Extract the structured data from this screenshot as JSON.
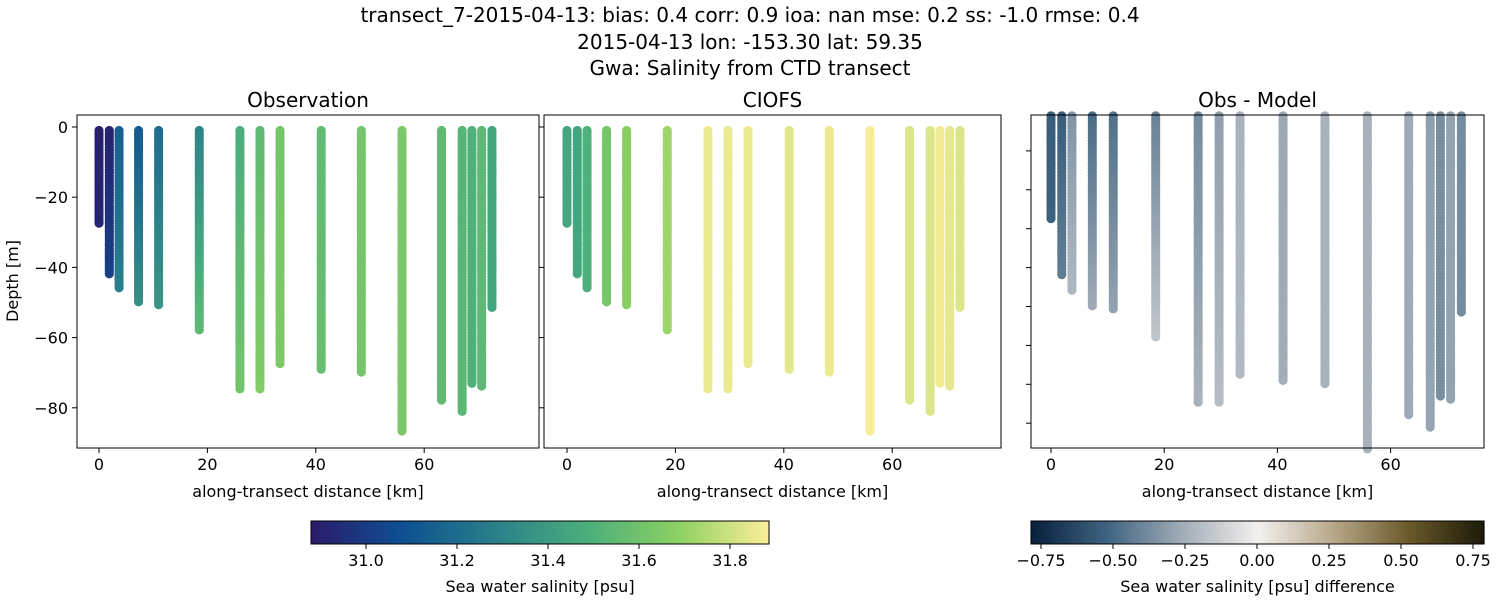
{
  "title": {
    "line1": "transect_7-2015-04-13: bias: 0.4  corr: 0.9  ioa: nan  mse: 0.2  ss: -1.0  rmse: 0.4",
    "line2": "2015-04-13 lon: -153.30 lat: 59.35",
    "line3": "Gwa: Salinity from CTD transect"
  },
  "chart_data": [
    {
      "type": "scatter",
      "title": "Observation",
      "xlabel": "along-transect distance [km]",
      "ylabel": "Depth [m]",
      "xticks": [
        0,
        20,
        40,
        60
      ],
      "yticks": [
        0,
        -20,
        -40,
        -60,
        -80
      ],
      "ylim": [
        -91,
        3.5
      ]
    },
    {
      "type": "scatter",
      "title": "CIOFS",
      "xlabel": "along-transect distance [km]",
      "xticks": [
        0,
        20,
        40,
        60
      ],
      "ylim": [
        -91,
        3.5
      ]
    },
    {
      "type": "scatter",
      "title": "Obs - Model",
      "xlabel": "along-transect distance [km]",
      "xticks": [
        0,
        20,
        40,
        60
      ]
    }
  ],
  "profiles": [
    {
      "x": 0,
      "depth": 28,
      "obs_top": 30.9,
      "obs_bottom": 30.92,
      "model": 31.45
    },
    {
      "x": 1.9,
      "depth": 42,
      "obs_top": 30.9,
      "obs_bottom": 31.02,
      "model": 31.45
    },
    {
      "x": 3.7,
      "depth": 46,
      "obs_top": 31.15,
      "obs_bottom": 31.28,
      "model": 31.5
    },
    {
      "x": 7.3,
      "depth": 50,
      "obs_top": 31.12,
      "obs_bottom": 31.35,
      "model": 31.62
    },
    {
      "x": 11,
      "depth": 51,
      "obs_top": 31.2,
      "obs_bottom": 31.38,
      "model": 31.68
    },
    {
      "x": 18.5,
      "depth": 58,
      "obs_top": 31.3,
      "obs_bottom": 31.55,
      "model": 31.72
    },
    {
      "x": 26,
      "depth": 75,
      "obs_top": 31.48,
      "obs_bottom": 31.62,
      "model": 31.86
    },
    {
      "x": 29.7,
      "depth": 75,
      "obs_top": 31.55,
      "obs_bottom": 31.66,
      "model": 31.86
    },
    {
      "x": 33.4,
      "depth": 68,
      "obs_top": 31.62,
      "obs_bottom": 31.65,
      "model": 31.86
    },
    {
      "x": 41,
      "depth": 69,
      "obs_top": 31.56,
      "obs_bottom": 31.58,
      "model": 31.84
    },
    {
      "x": 48.4,
      "depth": 70,
      "obs_top": 31.62,
      "obs_bottom": 31.62,
      "model": 31.86
    },
    {
      "x": 55.9,
      "depth": 87,
      "obs_top": 31.64,
      "obs_bottom": 31.64,
      "model": 31.88
    },
    {
      "x": 63.2,
      "depth": 78,
      "obs_top": 31.56,
      "obs_bottom": 31.56,
      "model": 31.83
    },
    {
      "x": 67,
      "depth": 81,
      "obs_top": 31.52,
      "obs_bottom": 31.54,
      "model": 31.83
    },
    {
      "x": 68.8,
      "depth": 73,
      "obs_top": 31.5,
      "obs_bottom": 31.5,
      "model": 31.87
    },
    {
      "x": 70.6,
      "depth": 74,
      "obs_top": 31.55,
      "obs_bottom": 31.55,
      "model": 31.85
    },
    {
      "x": 72.5,
      "depth": 52,
      "obs_top": 31.45,
      "obs_bottom": 31.45,
      "model": 31.83
    }
  ],
  "colorbar_salinity": {
    "label": "Sea water salinity [psu]",
    "ticks": [
      "31.0",
      "31.2",
      "31.4",
      "31.6",
      "31.8"
    ],
    "range": [
      30.88,
      31.89
    ],
    "colors": [
      "#2b1b6a",
      "#0e5092",
      "#2a7f8a",
      "#4aae7c",
      "#8bd062",
      "#fdee99"
    ]
  },
  "colorbar_diff": {
    "label": "Sea water salinity [psu] difference",
    "ticks": [
      "−0.75",
      "−0.50",
      "−0.25",
      "0.00",
      "0.25",
      "0.50",
      "0.75"
    ],
    "range": [
      -0.79,
      0.79
    ],
    "colors": [
      "#08203c",
      "#3e6380",
      "#a0acb7",
      "#f3f0ee",
      "#b8a88a",
      "#6b5a2a",
      "#1c1a08"
    ]
  }
}
